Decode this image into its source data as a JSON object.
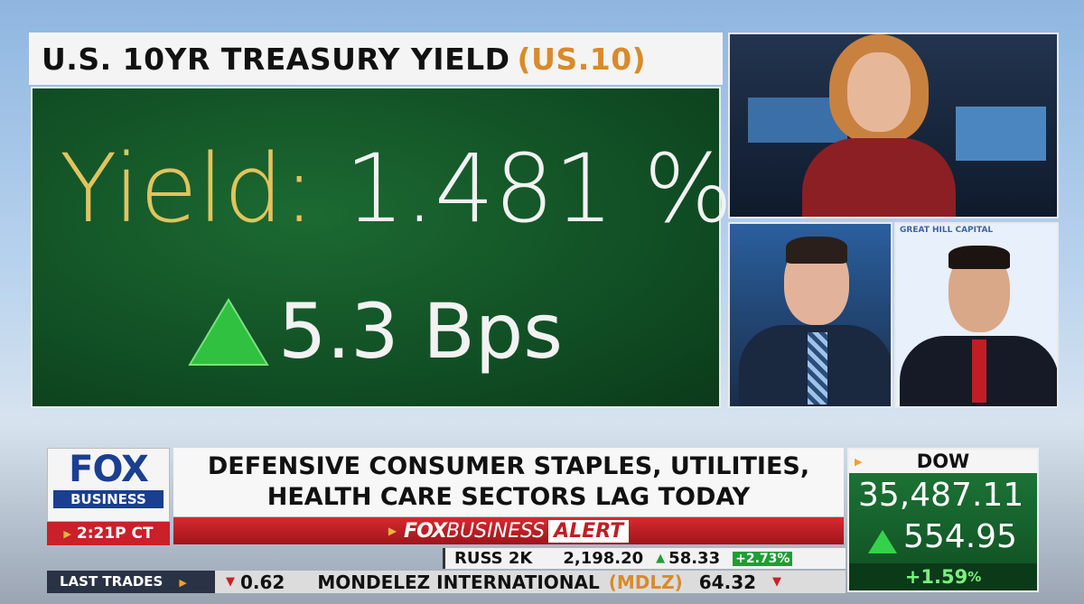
{
  "graphic": {
    "title": "U.S. 10YR TREASURY YIELD",
    "symbol": "(US.10)",
    "yield_label": "Yield:",
    "yield_value": "1.481",
    "yield_unit": "%",
    "change": "5.3",
    "change_unit": "Bps"
  },
  "video": {
    "backdrop_text": "GREAT HILL CAPITAL"
  },
  "logo": {
    "brand": "FOX",
    "sub": "BUSINESS",
    "time": "2:21P CT"
  },
  "headline": {
    "lines": [
      "DEFENSIVE CONSUMER STAPLES, UTILITIES,",
      "HEALTH CARE SECTORS LAG TODAY"
    ]
  },
  "alert": {
    "brand": "FOX",
    "sub": "BUSINESS",
    "tag": "ALERT"
  },
  "dow": {
    "label": "DOW",
    "value": "35,487.11",
    "change": "554.95",
    "percent": "+1.59",
    "percent_unit": "%"
  },
  "ticker": {
    "top": {
      "symbol": "RUSS 2K",
      "price": "2,198.20",
      "change": "58.33",
      "percent": "+2.73%"
    },
    "bottom": {
      "label": "LAST TRADES",
      "prev_change": "0.62",
      "name": "MONDELEZ INTERNATIONAL",
      "symbol": "(MDLZ)",
      "price": "64.32"
    }
  }
}
